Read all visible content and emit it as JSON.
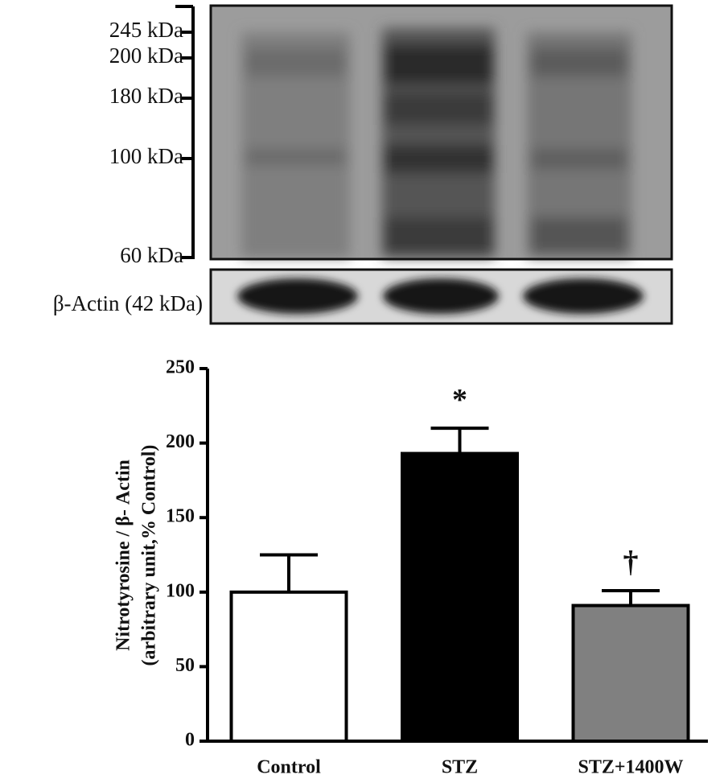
{
  "blot": {
    "markers": [
      "245 kDa",
      "200 kDa",
      "180 kDa",
      "100 kDa",
      "60 kDa"
    ],
    "loading_control": "β-Actin (42 kDa)"
  },
  "chart_data": {
    "type": "bar",
    "ylabel": [
      "Nitrotyrosine  / β- Actin",
      "(arbitrary unit,% Control)"
    ],
    "categories": [
      "Control",
      "STZ",
      "STZ+1400W"
    ],
    "series": [
      {
        "colors": [
          "#ffffff",
          "#000000",
          "#808080"
        ],
        "values": [
          100,
          193,
          91
        ],
        "errors": [
          25,
          17,
          10
        ]
      }
    ],
    "annotations": [
      null,
      "*",
      "†"
    ],
    "ylim": [
      0,
      250
    ],
    "yticks": [
      0,
      50,
      100,
      150,
      200,
      250
    ]
  }
}
